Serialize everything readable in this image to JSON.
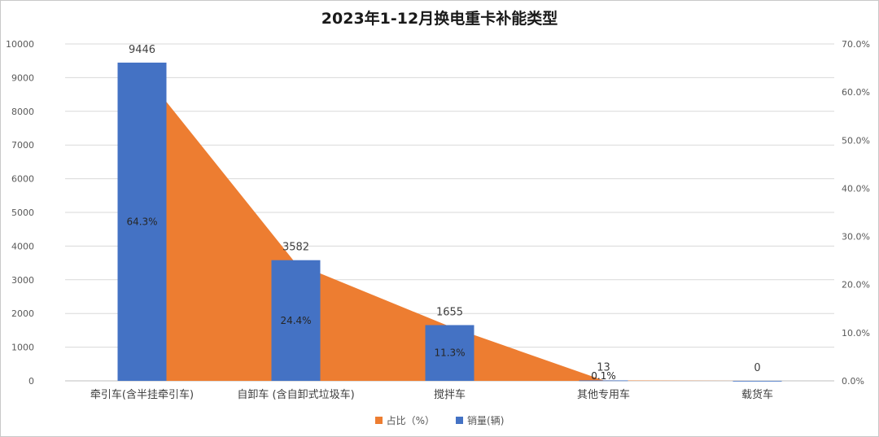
{
  "chart_data": {
    "type": "bar",
    "title": "2023年1-12月换电重卡补能类型",
    "categories": [
      "牵引车(含半挂牵引车)",
      "自卸车 (含自卸式垃圾车)",
      "搅拌车",
      "其他专用车",
      "载货车"
    ],
    "series": [
      {
        "name": "占比（%）",
        "kind": "area",
        "axis": "right",
        "color": "#ED7D31",
        "values": [
          64.3,
          24.4,
          11.3,
          0.1,
          0.0
        ],
        "labels": [
          "64.3%",
          "24.4%",
          "11.3%",
          "0.1%",
          ""
        ]
      },
      {
        "name": "销量(辆)",
        "kind": "bar",
        "axis": "left",
        "color": "#4472C4",
        "values": [
          9446,
          3582,
          1655,
          13,
          0
        ],
        "labels": [
          "9446",
          "3582",
          "1655",
          "13",
          "0"
        ]
      }
    ],
    "left_axis": {
      "ylim": [
        0,
        10000
      ],
      "ticks": [
        "0",
        "1000",
        "2000",
        "3000",
        "4000",
        "5000",
        "6000",
        "7000",
        "8000",
        "9000",
        "10000"
      ]
    },
    "right_axis": {
      "ylim": [
        0,
        70
      ],
      "ticks": [
        "0.0%",
        "10.0%",
        "20.0%",
        "30.0%",
        "40.0%",
        "50.0%",
        "60.0%",
        "70.0%"
      ]
    },
    "grid": true,
    "legend_position": "bottom"
  }
}
